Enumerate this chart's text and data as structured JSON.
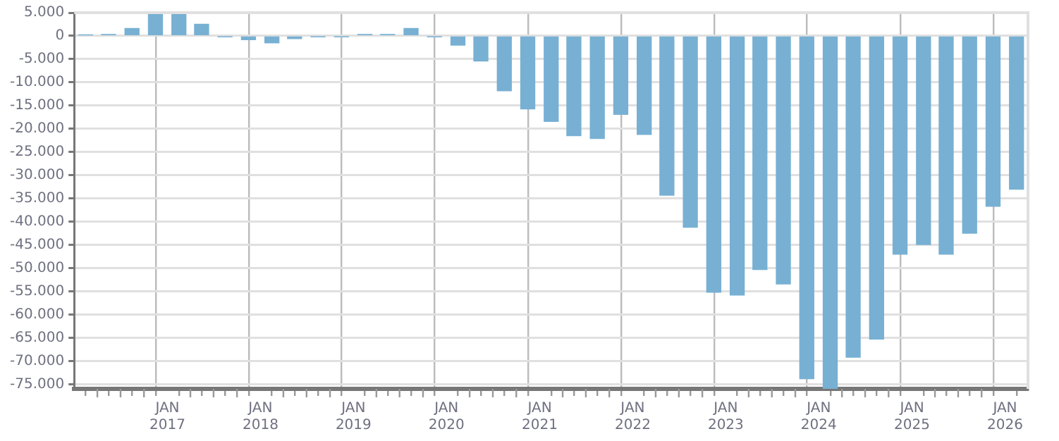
{
  "chart_data": {
    "type": "bar",
    "color": "#77b0d3",
    "x": [
      "2016-02-15",
      "2016-05-15",
      "2016-08-15",
      "2016-11-15",
      "2017-02-15",
      "2017-05-15",
      "2017-08-15",
      "2017-11-15",
      "2018-02-15",
      "2018-05-15",
      "2018-08-15",
      "2018-11-15",
      "2019-02-15",
      "2019-05-15",
      "2019-08-15",
      "2019-11-15",
      "2020-02-15",
      "2020-05-15",
      "2020-08-15",
      "2020-11-15",
      "2021-02-15",
      "2021-05-15",
      "2021-08-15",
      "2021-11-15",
      "2022-02-15",
      "2022-05-15",
      "2022-08-15",
      "2022-11-15",
      "2023-02-15",
      "2023-05-15",
      "2023-08-15",
      "2023-11-15",
      "2024-02-15",
      "2024-05-15",
      "2024-08-15",
      "2024-11-15",
      "2025-02-15",
      "2025-05-15",
      "2025-08-15",
      "2025-11-15",
      "2026-02-15"
    ],
    "values": [
      200,
      300,
      1600,
      4700,
      5000,
      2500,
      -200,
      -800,
      -1500,
      -600,
      -200,
      -200,
      300,
      300,
      1600,
      -200,
      -2000,
      -5400,
      -11800,
      -15700,
      -18400,
      -21500,
      -22100,
      -16900,
      -21200,
      -34300,
      -41200,
      -55200,
      -55800,
      -50300,
      -53400,
      -73800,
      -76000,
      -69200,
      -65300,
      -47000,
      -44900,
      -47000,
      -42500,
      -36700,
      -33000
    ],
    "xlim": [
      "2016-01",
      "2026-04"
    ],
    "xticks": [
      {
        "value": "2016-04",
        "label": null
      },
      {
        "value": "2016-07",
        "label": null
      },
      {
        "value": "2016-10",
        "label": null
      },
      {
        "value": "2017-01",
        "label": "JAN 2017"
      },
      {
        "value": "2017-04",
        "label": null
      },
      {
        "value": "2017-07",
        "label": null
      },
      {
        "value": "2017-10",
        "label": null
      },
      {
        "value": "2018-01",
        "label": "JAN 2018"
      },
      {
        "value": "2018-04",
        "label": null
      },
      {
        "value": "2018-07",
        "label": null
      },
      {
        "value": "2018-10",
        "label": null
      },
      {
        "value": "2019-01",
        "label": "JAN 2019"
      },
      {
        "value": "2019-04",
        "label": null
      },
      {
        "value": "2019-07",
        "label": null
      },
      {
        "value": "2019-10",
        "label": null
      },
      {
        "value": "2020-01",
        "label": "JAN 2020"
      },
      {
        "value": "2020-04",
        "label": null
      },
      {
        "value": "2020-07",
        "label": null
      },
      {
        "value": "2020-10",
        "label": null
      },
      {
        "value": "2021-01",
        "label": "JAN 2021"
      },
      {
        "value": "2021-04",
        "label": null
      },
      {
        "value": "2021-07",
        "label": null
      },
      {
        "value": "2021-10",
        "label": null
      },
      {
        "value": "2022-01",
        "label": "JAN 2022"
      },
      {
        "value": "2022-04",
        "label": null
      },
      {
        "value": "2022-07",
        "label": null
      },
      {
        "value": "2022-10",
        "label": null
      },
      {
        "value": "2023-01",
        "label": "JAN 2023"
      },
      {
        "value": "2023-04",
        "label": null
      },
      {
        "value": "2023-07",
        "label": null
      },
      {
        "value": "2023-10",
        "label": null
      },
      {
        "value": "2024-01",
        "label": "JAN 2024"
      },
      {
        "value": "2024-04",
        "label": null
      },
      {
        "value": "2024-07",
        "label": null
      },
      {
        "value": "2024-10",
        "label": null
      },
      {
        "value": "2025-01",
        "label": "JAN 2025"
      },
      {
        "value": "2025-04",
        "label": null
      },
      {
        "value": "2025-07",
        "label": null
      },
      {
        "value": "2025-10",
        "label": null
      },
      {
        "value": "2026-01",
        "label": "JAN 2026"
      }
    ],
    "ylim": [
      -76000,
      5000
    ],
    "yticks": [
      {
        "value": 5000,
        "label": "5.000"
      },
      0,
      {
        "value": -5000,
        "label": "-5.000"
      },
      {
        "value": -10000,
        "label": "-10.000"
      },
      {
        "value": -15000,
        "label": "-15.000"
      },
      {
        "value": -20000,
        "label": "-20.000"
      },
      {
        "value": -25000,
        "label": "-25.000"
      },
      {
        "value": -30000,
        "label": "-30.000"
      },
      {
        "value": -35000,
        "label": "-35.000"
      },
      {
        "value": -40000,
        "label": "-40.000"
      },
      {
        "value": -45000,
        "label": "-45.000"
      },
      {
        "value": -50000,
        "label": "-50.000"
      },
      {
        "value": -55000,
        "label": "-55.000"
      },
      {
        "value": -60000,
        "label": "-60.000"
      },
      {
        "value": -65000,
        "label": "-65.000"
      },
      {
        "value": -70000,
        "label": "-70.000"
      },
      {
        "value": -75000,
        "label": "-75.000"
      }
    ],
    "grid": true
  }
}
